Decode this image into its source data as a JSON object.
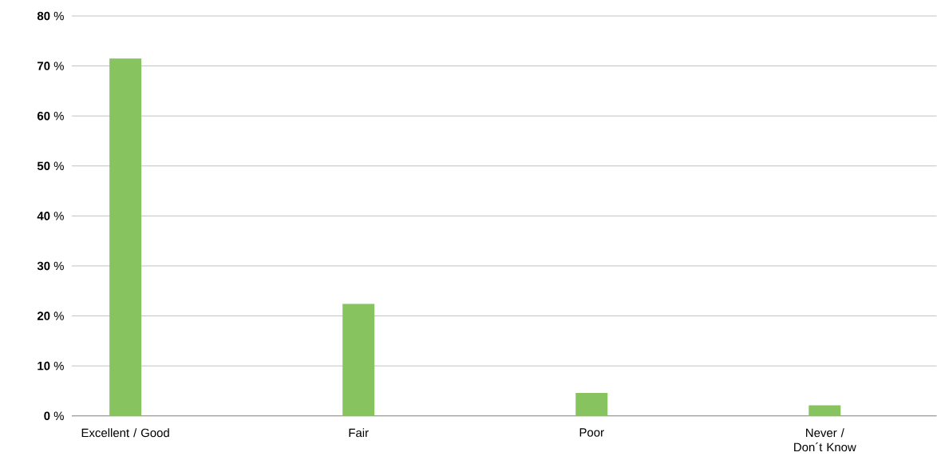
{
  "chart_data": {
    "type": "bar",
    "categories": [
      "Excellent / Good",
      "Fair",
      "Poor",
      "Never / Don´t Know"
    ],
    "values": [
      71.5,
      22.4,
      4.6,
      2.1
    ],
    "color": "#87c35f",
    "ylim": [
      0,
      80
    ],
    "yticks": [
      {
        "value": 0,
        "label": "**0** %"
      },
      {
        "value": 10,
        "label": "**10** %"
      },
      {
        "value": 20,
        "label": "**20** %"
      },
      {
        "value": 30,
        "label": "**30** %"
      },
      {
        "value": 40,
        "label": "**40** %"
      },
      {
        "value": 50,
        "label": "**50** %"
      },
      {
        "value": 60,
        "label": "**60** %"
      },
      {
        "value": 70,
        "label": "**70** %"
      },
      {
        "value": 80,
        "label": "**80** %"
      }
    ],
    "grid": "y"
  }
}
